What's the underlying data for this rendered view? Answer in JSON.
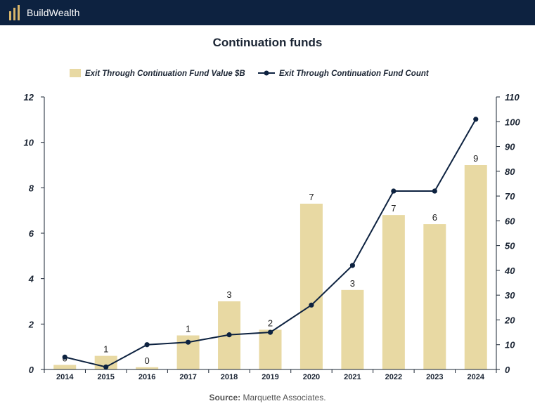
{
  "brand": {
    "name": "BuildWealth",
    "accent": "#d8b56a",
    "bar_color": "#0d2240"
  },
  "source": {
    "label": "Source:",
    "text": "Marquette Associates."
  },
  "chart_data": {
    "type": "bar",
    "title": "Continuation funds",
    "legend_position": "top-center",
    "grid": false,
    "categories": [
      "2014",
      "2015",
      "2016",
      "2017",
      "2018",
      "2019",
      "2020",
      "2021",
      "2022",
      "2023",
      "2024"
    ],
    "series": [
      {
        "name": "Exit Through Continuation Fund Value $B",
        "type": "bar",
        "axis": "left",
        "color": "#e8d9a3",
        "values": [
          0.2,
          0.6,
          0.1,
          1.5,
          3.0,
          1.75,
          7.3,
          3.5,
          6.8,
          6.4,
          9.0
        ],
        "labels": [
          "0",
          "1",
          "0",
          "1",
          "3",
          "2",
          "7",
          "3",
          "7",
          "6",
          "9"
        ]
      },
      {
        "name": "Exit Through Continuation Fund Count",
        "type": "line",
        "axis": "right",
        "color": "#0d2240",
        "values": [
          5,
          1,
          10,
          11,
          14,
          15,
          26,
          42,
          72,
          72,
          101
        ]
      }
    ],
    "y_left": {
      "ylim": [
        0,
        12
      ],
      "ticks": [
        "0",
        "2",
        "4",
        "6",
        "8",
        "10",
        "12"
      ]
    },
    "y_right": {
      "ylim": [
        0,
        110
      ],
      "ticks": [
        "0",
        "10",
        "20",
        "30",
        "40",
        "50",
        "60",
        "70",
        "80",
        "90",
        "100",
        "110"
      ]
    }
  }
}
